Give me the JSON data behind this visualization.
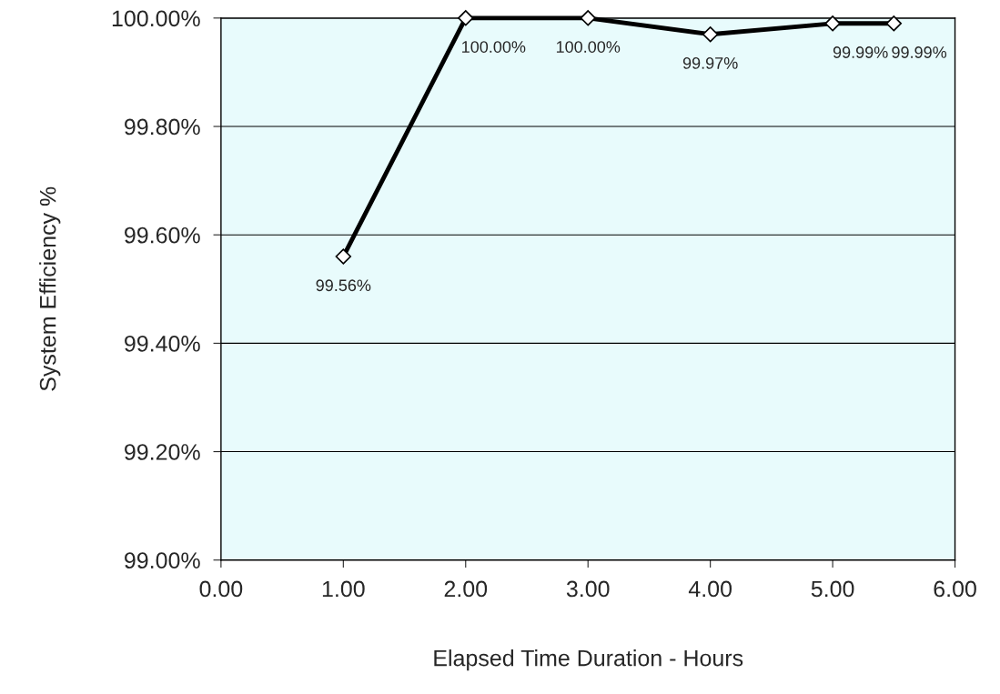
{
  "chart_data": {
    "type": "line",
    "xlabel": "Elapsed Time Duration - Hours",
    "ylabel": "System Efficiency %",
    "x": [
      1,
      2,
      3,
      4,
      5,
      5.5
    ],
    "series": [
      {
        "color": "#000000",
        "values": [
          99.56,
          100.0,
          100.0,
          99.97,
          99.99,
          99.99
        ]
      }
    ],
    "value_labels": [
      "99.56%",
      "100.00%",
      "100.00%",
      "99.97%",
      "99.99%",
      "99.99%"
    ],
    "xlim": [
      0,
      6
    ],
    "xticks": [
      {
        "value": 0,
        "label": "0.00"
      },
      {
        "value": 1,
        "label": "1.00"
      },
      {
        "value": 2,
        "label": "2.00"
      },
      {
        "value": 3,
        "label": "3.00"
      },
      {
        "value": 4,
        "label": "4.00"
      },
      {
        "value": 5,
        "label": "5.00"
      },
      {
        "value": 6,
        "label": "6.00"
      }
    ],
    "ylim": [
      99,
      100
    ],
    "yticks": [
      {
        "value": 99,
        "label": "99.00%"
      },
      {
        "value": 99.2,
        "label": "99.20%"
      },
      {
        "value": 99.4,
        "label": "99.40%"
      },
      {
        "value": 99.6,
        "label": "99.60%"
      },
      {
        "value": 99.8,
        "label": "99.80%"
      },
      {
        "value": 100,
        "label": "100.00%"
      }
    ],
    "grid": "y",
    "marker": "diamond",
    "line_style": "solid",
    "legend": false
  }
}
